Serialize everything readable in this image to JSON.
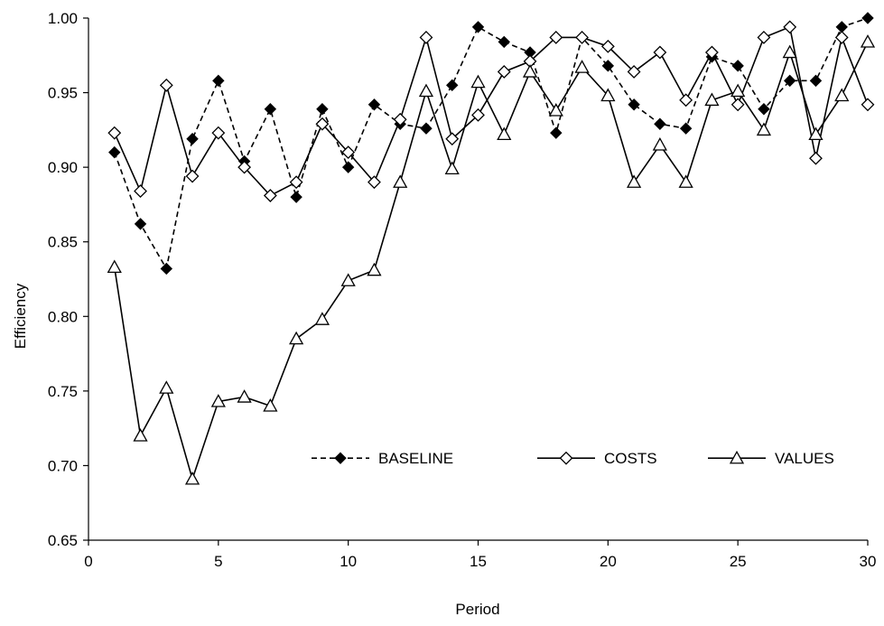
{
  "chart_data": {
    "type": "line",
    "xlabel": "Period",
    "ylabel": "Efficiency",
    "xlim": [
      0,
      30
    ],
    "ylim": [
      0.65,
      1.0
    ],
    "xticks": [
      "0",
      "5",
      "10",
      "15",
      "20",
      "25",
      "30"
    ],
    "yticks": [
      "0.65",
      "0.70",
      "0.75",
      "0.80",
      "0.85",
      "0.90",
      "0.95",
      "1.00"
    ],
    "grid": false,
    "legend_position": "lower-right",
    "x": [
      1,
      2,
      3,
      4,
      5,
      6,
      7,
      8,
      9,
      10,
      11,
      12,
      13,
      14,
      15,
      16,
      17,
      18,
      19,
      20,
      21,
      22,
      23,
      24,
      25,
      26,
      27,
      28,
      29,
      30
    ],
    "series": [
      {
        "name": "BASELINE",
        "line_style": "dashed",
        "marker": "filled-diamond",
        "values": [
          0.91,
          0.862,
          0.832,
          0.919,
          0.958,
          0.904,
          0.939,
          0.88,
          0.939,
          0.9,
          0.942,
          0.929,
          0.926,
          0.955,
          0.994,
          0.984,
          0.977,
          0.923,
          0.987,
          0.968,
          0.942,
          0.929,
          0.926,
          0.974,
          0.968,
          0.939,
          0.958,
          0.958,
          0.994,
          1.0
        ]
      },
      {
        "name": "COSTS",
        "line_style": "solid",
        "marker": "open-diamond",
        "values": [
          0.923,
          0.884,
          0.955,
          0.894,
          0.923,
          0.9,
          0.881,
          0.89,
          0.929,
          0.91,
          0.89,
          0.932,
          0.987,
          0.919,
          0.935,
          0.964,
          0.971,
          0.987,
          0.987,
          0.981,
          0.964,
          0.977,
          0.945,
          0.977,
          0.942,
          0.987,
          0.994,
          0.906,
          0.987,
          0.942
        ]
      },
      {
        "name": "VALUES",
        "line_style": "solid",
        "marker": "open-triangle",
        "values": [
          0.833,
          0.72,
          0.752,
          0.691,
          0.743,
          0.746,
          0.74,
          0.785,
          0.798,
          0.824,
          0.831,
          0.89,
          0.951,
          0.899,
          0.957,
          0.922,
          0.964,
          0.938,
          0.967,
          0.948,
          0.89,
          0.915,
          0.89,
          0.945,
          0.951,
          0.925,
          0.977,
          0.922,
          0.948,
          0.984
        ]
      }
    ]
  }
}
